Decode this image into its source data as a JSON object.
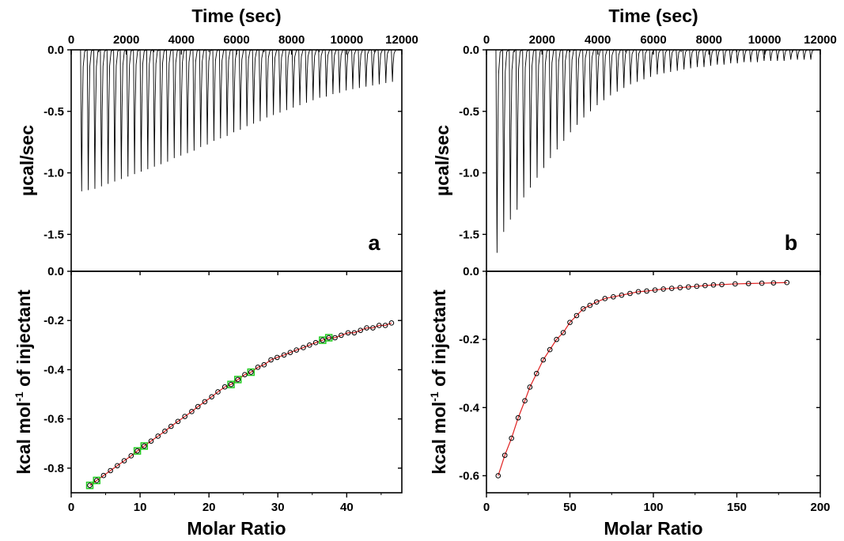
{
  "chart_data": [
    {
      "panel": "a",
      "panel_label": "a",
      "type": "line",
      "top": {
        "type": "line",
        "xlabel": "Time (sec)",
        "ylabel": "µcal/sec",
        "xlim": [
          0,
          12000
        ],
        "ylim": [
          -1.8,
          0.0
        ],
        "xticks": [
          0,
          2000,
          4000,
          6000,
          8000,
          10000,
          12000
        ],
        "yticks": [
          0.0,
          -0.5,
          -1.0,
          -1.5
        ],
        "series": [
          {
            "injection_times": [
              380,
              620,
              860,
              1100,
              1340,
              1580,
              1820,
              2060,
              2300,
              2540,
              2780,
              3020,
              3260,
              3500,
              3740,
              3980,
              4220,
              4460,
              4700,
              4940,
              5180,
              5420,
              5660,
              5900,
              6140,
              6380,
              6620,
              6860,
              7100,
              7340,
              7580,
              7820,
              8060,
              8300,
              8540,
              8780,
              9020,
              9260,
              9500,
              9740,
              9980,
              10220,
              10460,
              10700,
              10940,
              11180,
              11420,
              11660
            ],
            "peak_values": [
              -1.15,
              -1.14,
              -1.13,
              -1.11,
              -1.09,
              -1.07,
              -1.05,
              -1.03,
              -1.01,
              -0.99,
              -0.97,
              -0.95,
              -0.93,
              -0.91,
              -0.88,
              -0.86,
              -0.84,
              -0.82,
              -0.79,
              -0.77,
              -0.74,
              -0.72,
              -0.7,
              -0.67,
              -0.65,
              -0.62,
              -0.6,
              -0.58,
              -0.55,
              -0.53,
              -0.51,
              -0.49,
              -0.47,
              -0.45,
              -0.43,
              -0.41,
              -0.39,
              -0.38,
              -0.36,
              -0.35,
              -0.33,
              -0.32,
              -0.31,
              -0.3,
              -0.29,
              -0.28,
              -0.27,
              -0.26
            ]
          }
        ]
      },
      "bottom": {
        "type": "scatter",
        "xlabel": "Molar Ratio",
        "ylabel": "kcal mol",
        "ylabel_sup": "-1",
        "ylabel_rest": " of injectant",
        "xlim": [
          0,
          48
        ],
        "ylim": [
          -0.9,
          0.0
        ],
        "xticks": [
          0,
          10,
          20,
          30,
          40
        ],
        "yticks": [
          0.0,
          -0.2,
          -0.4,
          -0.6,
          -0.8
        ],
        "series": [
          {
            "x": [
              2.7,
              3.7,
              4.7,
              5.7,
              6.7,
              7.7,
              8.7,
              9.6,
              10.6,
              11.6,
              12.6,
              13.6,
              14.5,
              15.5,
              16.5,
              17.5,
              18.4,
              19.4,
              20.4,
              21.3,
              22.3,
              23.2,
              24.2,
              25.2,
              26.1,
              27.1,
              28.0,
              29.0,
              29.9,
              30.9,
              31.8,
              32.7,
              33.7,
              34.6,
              35.5,
              36.5,
              37.4,
              38.3,
              39.2,
              40.2,
              41.1,
              42.0,
              42.9,
              43.8,
              44.7,
              45.6,
              46.5
            ],
            "y": [
              -0.87,
              -0.85,
              -0.83,
              -0.81,
              -0.79,
              -0.77,
              -0.75,
              -0.73,
              -0.71,
              -0.69,
              -0.67,
              -0.65,
              -0.63,
              -0.61,
              -0.59,
              -0.57,
              -0.55,
              -0.53,
              -0.51,
              -0.49,
              -0.47,
              -0.46,
              -0.44,
              -0.42,
              -0.41,
              -0.39,
              -0.38,
              -0.36,
              -0.35,
              -0.34,
              -0.33,
              -0.32,
              -0.31,
              -0.3,
              -0.29,
              -0.28,
              -0.27,
              -0.27,
              -0.26,
              -0.25,
              -0.25,
              -0.24,
              -0.23,
              -0.23,
              -0.22,
              -0.22,
              -0.21
            ],
            "highlighted_indices": [
              0,
              1,
              7,
              8,
              21,
              22,
              24,
              35,
              36
            ],
            "marker_color": "#000000",
            "highlight_color": "#22cc22",
            "fit_color": "#e02020"
          }
        ]
      }
    },
    {
      "panel": "b",
      "panel_label": "b",
      "type": "line",
      "top": {
        "type": "line",
        "xlabel": "Time (sec)",
        "ylabel": "µcal/sec",
        "xlim": [
          0,
          12000
        ],
        "ylim": [
          -1.8,
          0.0
        ],
        "xticks": [
          0,
          2000,
          4000,
          6000,
          8000,
          10000,
          12000
        ],
        "yticks": [
          0.0,
          -0.5,
          -1.0,
          -1.5
        ],
        "series": [
          {
            "injection_times": [
              380,
              620,
              860,
              1100,
              1340,
              1580,
              1820,
              2060,
              2300,
              2540,
              2780,
              3020,
              3260,
              3500,
              3740,
              3980,
              4220,
              4460,
              4700,
              4940,
              5180,
              5420,
              5660,
              5900,
              6140,
              6380,
              6620,
              6860,
              7100,
              7340,
              7580,
              7820,
              8060,
              8300,
              8540,
              8780,
              9020,
              9260,
              9500,
              9740,
              9980,
              10220,
              10460,
              10700,
              10940,
              11180,
              11420,
              11660
            ],
            "peak_values": [
              -1.65,
              -1.48,
              -1.38,
              -1.3,
              -1.2,
              -1.12,
              -1.04,
              -0.96,
              -0.88,
              -0.81,
              -0.74,
              -0.67,
              -0.61,
              -0.55,
              -0.5,
              -0.45,
              -0.41,
              -0.37,
              -0.34,
              -0.31,
              -0.28,
              -0.26,
              -0.24,
              -0.22,
              -0.2,
              -0.19,
              -0.18,
              -0.17,
              -0.16,
              -0.15,
              -0.14,
              -0.14,
              -0.13,
              -0.12,
              -0.12,
              -0.11,
              -0.11,
              -0.1,
              -0.1,
              -0.1,
              -0.09,
              -0.09,
              -0.09,
              -0.09,
              -0.08,
              -0.08,
              -0.08,
              -0.08
            ]
          }
        ]
      },
      "bottom": {
        "type": "scatter",
        "xlabel": "Molar Ratio",
        "ylabel": "kcal mol",
        "ylabel_sup": "-1",
        "ylabel_rest": " of injectant",
        "xlim": [
          0,
          200
        ],
        "ylim": [
          -0.65,
          0.0
        ],
        "xticks": [
          0,
          50,
          100,
          150,
          200
        ],
        "yticks": [
          0.0,
          -0.2,
          -0.4,
          -0.6
        ],
        "series": [
          {
            "x": [
              7,
              11,
              15,
              19,
              23,
              26,
              30,
              34,
              38,
              42,
              46,
              50,
              54,
              58,
              62,
              66,
              71,
              76,
              81,
              86,
              91,
              96,
              101,
              106,
              111,
              116,
              121,
              126,
              131,
              136,
              141,
              149,
              157,
              165,
              172,
              180
            ],
            "y": [
              -0.6,
              -0.54,
              -0.49,
              -0.43,
              -0.38,
              -0.34,
              -0.3,
              -0.26,
              -0.23,
              -0.2,
              -0.18,
              -0.15,
              -0.13,
              -0.11,
              -0.1,
              -0.09,
              -0.08,
              -0.075,
              -0.07,
              -0.065,
              -0.06,
              -0.058,
              -0.055,
              -0.052,
              -0.05,
              -0.048,
              -0.046,
              -0.044,
              -0.042,
              -0.04,
              -0.039,
              -0.037,
              -0.036,
              -0.035,
              -0.034,
              -0.033
            ],
            "highlighted_indices": [],
            "marker_color": "#000000",
            "highlight_color": "#22cc22",
            "fit_color": "#e02020"
          }
        ]
      }
    }
  ]
}
